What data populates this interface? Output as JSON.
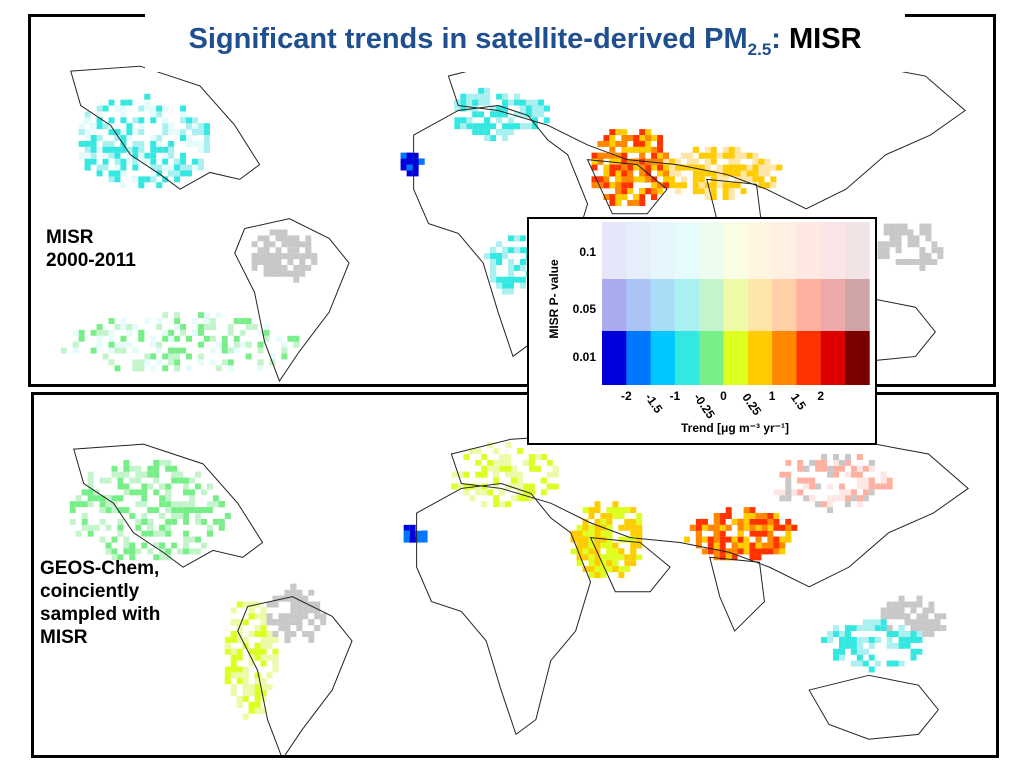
{
  "title": {
    "main": "Significant trends in satellite-derived PM",
    "subscript": "2.5",
    "separator": ": ",
    "tail": "MISR"
  },
  "panels": {
    "top_label": [
      "MISR",
      "2000-2011"
    ],
    "bottom_label": [
      "GEOS-Chem,",
      "coinciently",
      "sampled with",
      "MISR"
    ]
  },
  "legend": {
    "y_axis_label": "MISR  P- value",
    "p_values": [
      "0.1",
      "0.05",
      "0.01"
    ],
    "trend_ticks": [
      "-2",
      "-1.5",
      "-1",
      "-0.25",
      "0",
      "0.25",
      "1",
      "1.5",
      "2"
    ],
    "x_axis_label": "Trend [μg m⁻³ yr⁻¹]",
    "colors_strong": [
      "#0000dd",
      "#0077ff",
      "#00c8ff",
      "#33e8e0",
      "#77ee88",
      "#ddff22",
      "#ffcc00",
      "#ff8800",
      "#ff3300",
      "#dd0000",
      "#7a0000"
    ],
    "colors_medium": [
      "#aaaaee",
      "#aac4f5",
      "#aadcf8",
      "#aaf0f0",
      "#c4f4cc",
      "#eefaa8",
      "#ffe6a8",
      "#ffd0a8",
      "#ffb0a0",
      "#eeaaaa",
      "#d0a4a4"
    ],
    "colors_weak": [
      "#e6e6fa",
      "#e6eefc",
      "#e6f6fc",
      "#e6fbfb",
      "#ecfcee",
      "#f8fde4",
      "#fff6e2",
      "#fff0e2",
      "#ffe8e4",
      "#fae6e6",
      "#f2e4e4"
    ]
  },
  "map_colors": {
    "land_no_data": "#c8c8c8",
    "coast": "#222222"
  }
}
